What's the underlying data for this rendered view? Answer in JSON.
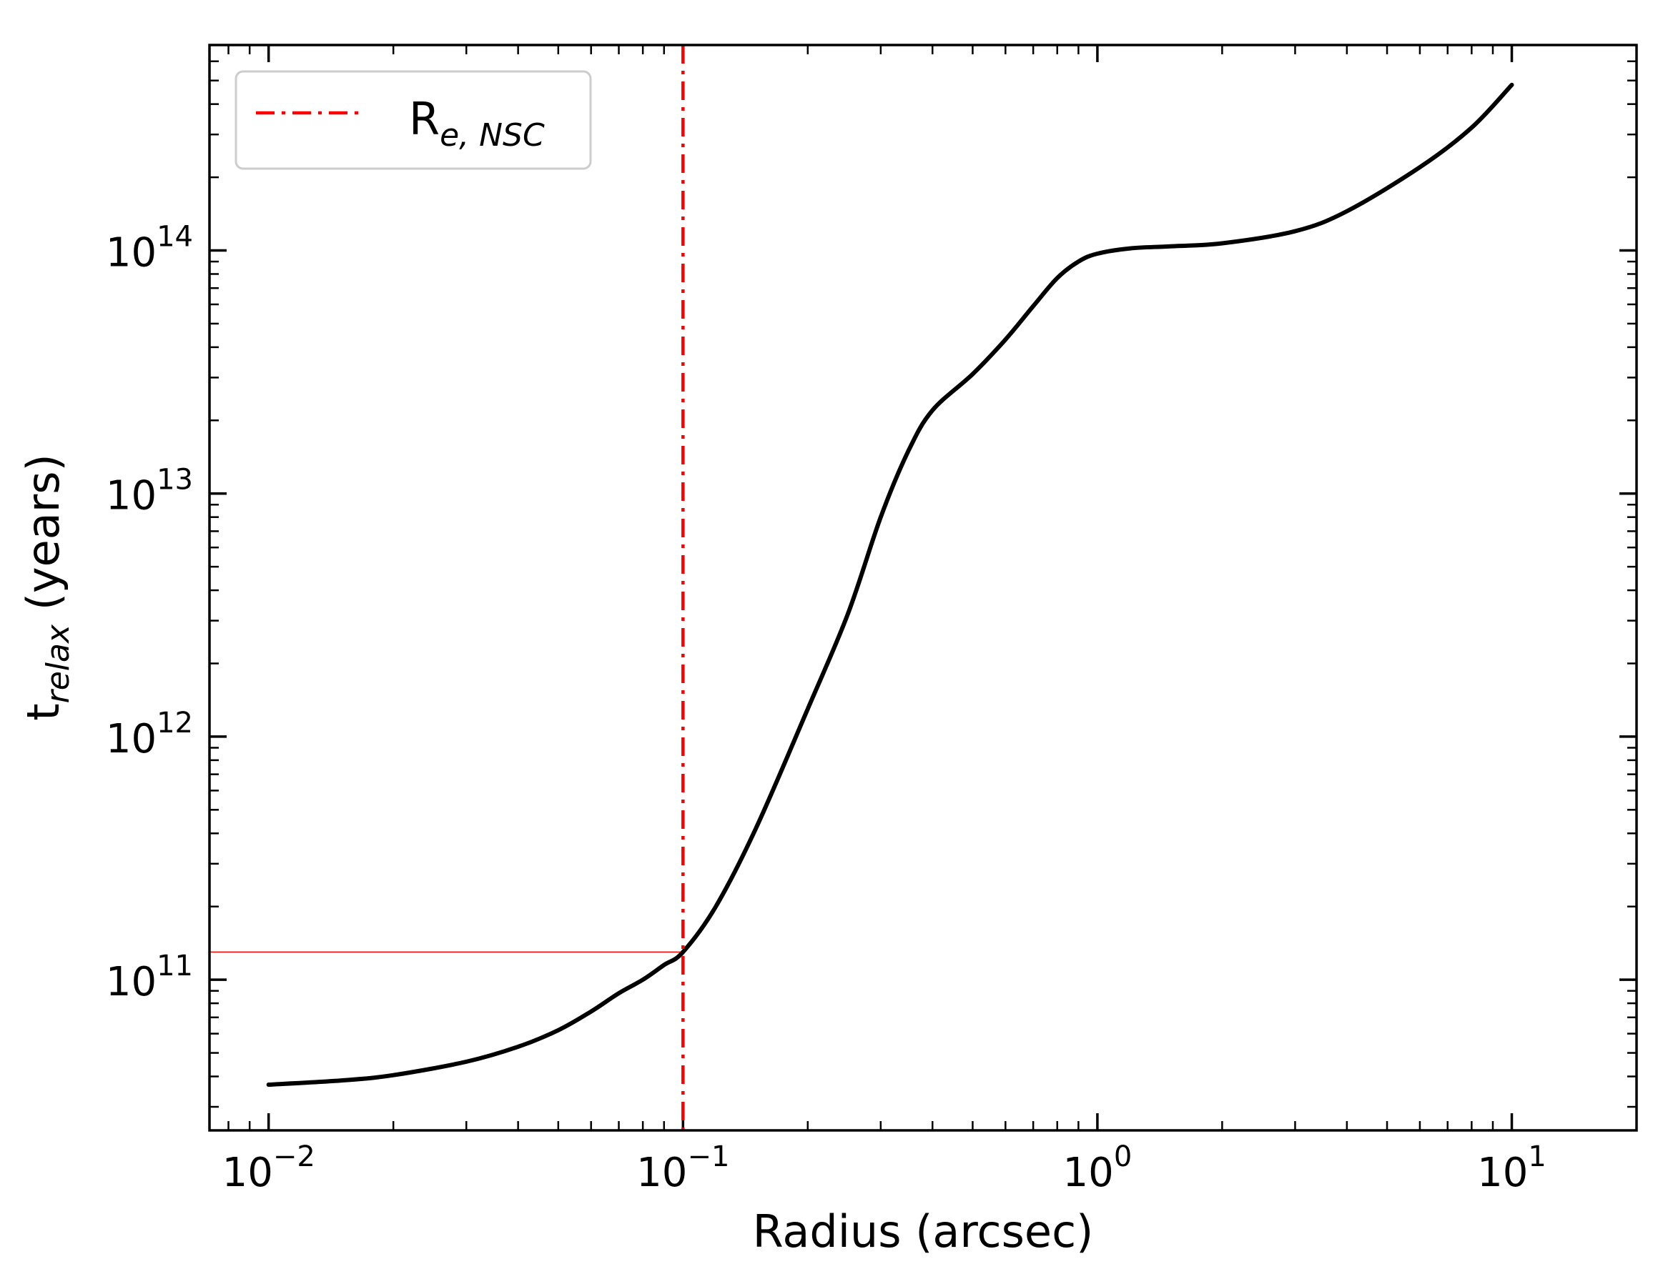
{
  "chart_data": {
    "type": "line",
    "title": "",
    "xlabel": "Radius (arcsec)",
    "ylabel": "t",
    "ylabel_sub": "relax",
    "ylabel_suffix": " (years)",
    "xscale": "log",
    "yscale": "log",
    "xlim": [
      0.0072,
      20
    ],
    "ylim": [
      24000000000.0,
      700000000000000.0
    ],
    "x_ticks": [
      {
        "value": 0.01,
        "base": "10",
        "exp": "−2"
      },
      {
        "value": 0.1,
        "base": "10",
        "exp": "−1"
      },
      {
        "value": 1,
        "base": "10",
        "exp": "0"
      },
      {
        "value": 10,
        "base": "10",
        "exp": "1"
      }
    ],
    "y_ticks": [
      {
        "value": 100000000000.0,
        "base": "10",
        "exp": "11"
      },
      {
        "value": 1000000000000.0,
        "base": "10",
        "exp": "12"
      },
      {
        "value": 10000000000000.0,
        "base": "10",
        "exp": "13"
      },
      {
        "value": 100000000000000.0,
        "base": "10",
        "exp": "14"
      }
    ],
    "grid": false,
    "legend_position": "top-left",
    "series": [
      {
        "name": "",
        "color": "#000000",
        "style": "solid",
        "x": [
          0.01,
          0.015,
          0.02,
          0.03,
          0.04,
          0.05,
          0.06,
          0.07,
          0.08,
          0.09,
          0.1,
          0.12,
          0.15,
          0.2,
          0.25,
          0.3,
          0.35,
          0.4,
          0.5,
          0.6,
          0.7,
          0.8,
          0.9,
          1.0,
          1.2,
          1.5,
          2.0,
          3.0,
          4.0,
          6.0,
          8.0,
          10.0
        ],
        "y": [
          37000000000.0,
          38500000000.0,
          40500000000.0,
          46000000000.0,
          53000000000.0,
          62000000000.0,
          74000000000.0,
          88000000000.0,
          100000000000.0,
          115000000000.0,
          130000000000.0,
          200000000000.0,
          420000000000.0,
          1300000000000.0,
          3200000000000.0,
          8000000000000.0,
          15000000000000.0,
          22000000000000.0,
          31000000000000.0,
          43000000000000.0,
          59000000000000.0,
          77000000000000.0,
          90000000000000.0,
          97000000000000.0,
          102000000000000.0,
          104000000000000.0,
          107000000000000.0,
          120000000000000.0,
          145000000000000.0,
          220000000000000.0,
          320000000000000.0,
          480000000000000.0
        ]
      }
    ],
    "vline": {
      "name": "R",
      "name_sub": "e, NSC",
      "x": 0.1,
      "color": "#ff0000",
      "style": "dash-dot"
    },
    "hline": {
      "y": 130000000000.0,
      "x_to": 0.1,
      "color": "#ff0000"
    }
  }
}
